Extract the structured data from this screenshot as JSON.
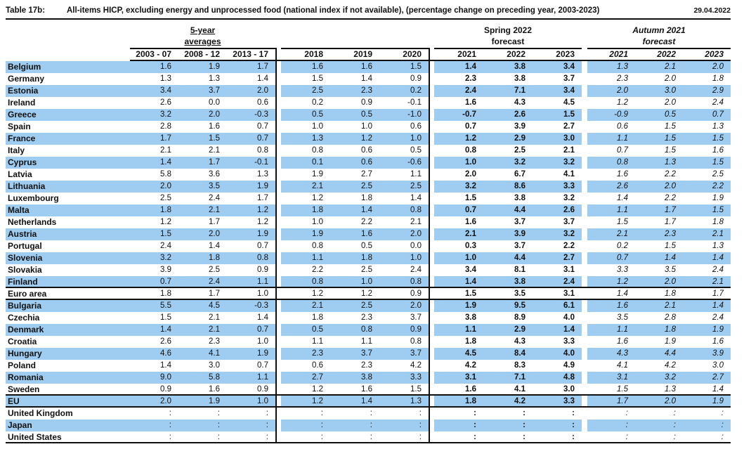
{
  "document": {
    "table_label": "Table 17b:",
    "title": "All-items HICP, excluding energy and unprocessed food (national index if not available), (percentage change on preceding year, 2003-2023)",
    "date": "29.04.2022"
  },
  "column_groups": {
    "averages": {
      "line1": "5-year",
      "line2": "averages"
    },
    "spring": {
      "line1": "Spring 2022",
      "line2": "forecast"
    },
    "autumn": {
      "line1": "Autumn 2021",
      "line2": "forecast"
    }
  },
  "colors": {
    "row_highlight": "#9fcdf2",
    "rule": "#111111"
  },
  "chart_data": {
    "type": "table",
    "column_headers": [
      "2003 - 07",
      "2008 - 12",
      "2013 - 17",
      "2018",
      "2019",
      "2020",
      "2021",
      "2022",
      "2023",
      "2021",
      "2022",
      "2023"
    ],
    "rows": [
      {
        "country": "Belgium",
        "values": [
          "1.6",
          "1.9",
          "1.7",
          "1.6",
          "1.6",
          "1.5",
          "1.4",
          "3.8",
          "3.4",
          "1.3",
          "2.1",
          "2.0"
        ]
      },
      {
        "country": "Germany",
        "values": [
          "1.3",
          "1.3",
          "1.4",
          "1.5",
          "1.4",
          "0.9",
          "2.3",
          "3.8",
          "3.7",
          "2.3",
          "2.0",
          "1.8"
        ]
      },
      {
        "country": "Estonia",
        "values": [
          "3.4",
          "3.7",
          "2.0",
          "2.5",
          "2.3",
          "0.2",
          "2.4",
          "7.1",
          "3.4",
          "2.0",
          "3.0",
          "2.9"
        ]
      },
      {
        "country": "Ireland",
        "values": [
          "2.6",
          "0.0",
          "0.6",
          "0.2",
          "0.9",
          "-0.1",
          "1.6",
          "4.3",
          "4.5",
          "1.2",
          "2.0",
          "2.4"
        ]
      },
      {
        "country": "Greece",
        "values": [
          "3.2",
          "2.0",
          "-0.3",
          "0.5",
          "0.5",
          "-1.0",
          "-0.7",
          "2.6",
          "1.5",
          "-0.9",
          "0.5",
          "0.7"
        ]
      },
      {
        "country": "Spain",
        "values": [
          "2.8",
          "1.6",
          "0.7",
          "1.0",
          "1.0",
          "0.6",
          "0.7",
          "3.9",
          "2.7",
          "0.6",
          "1.5",
          "1.3"
        ]
      },
      {
        "country": "France",
        "values": [
          "1.7",
          "1.5",
          "0.7",
          "1.3",
          "1.2",
          "1.0",
          "1.2",
          "2.9",
          "3.0",
          "1.1",
          "1.5",
          "1.5"
        ]
      },
      {
        "country": "Italy",
        "values": [
          "2.1",
          "2.1",
          "0.8",
          "0.8",
          "0.6",
          "0.5",
          "0.8",
          "2.5",
          "2.1",
          "0.7",
          "1.5",
          "1.6"
        ]
      },
      {
        "country": "Cyprus",
        "values": [
          "1.4",
          "1.7",
          "-0.1",
          "0.1",
          "0.6",
          "-0.6",
          "1.0",
          "3.2",
          "3.2",
          "0.8",
          "1.3",
          "1.5"
        ]
      },
      {
        "country": "Latvia",
        "values": [
          "5.8",
          "3.6",
          "1.3",
          "1.9",
          "2.7",
          "1.1",
          "2.0",
          "6.7",
          "4.1",
          "1.6",
          "2.2",
          "2.5"
        ]
      },
      {
        "country": "Lithuania",
        "values": [
          "2.0",
          "3.5",
          "1.9",
          "2.1",
          "2.5",
          "2.5",
          "3.2",
          "8.6",
          "3.3",
          "2.6",
          "2.0",
          "2.2"
        ]
      },
      {
        "country": "Luxembourg",
        "values": [
          "2.5",
          "2.4",
          "1.7",
          "1.2",
          "1.8",
          "1.4",
          "1.5",
          "3.8",
          "3.2",
          "1.4",
          "2.2",
          "1.9"
        ]
      },
      {
        "country": "Malta",
        "values": [
          "1.8",
          "2.1",
          "1.2",
          "1.8",
          "1.4",
          "0.8",
          "0.7",
          "4.4",
          "2.6",
          "1.1",
          "1.7",
          "1.5"
        ]
      },
      {
        "country": "Netherlands",
        "values": [
          "1.2",
          "1.7",
          "1.2",
          "1.0",
          "2.2",
          "2.1",
          "1.6",
          "3.7",
          "3.7",
          "1.5",
          "1.7",
          "1.8"
        ]
      },
      {
        "country": "Austria",
        "values": [
          "1.5",
          "2.0",
          "1.9",
          "1.9",
          "1.6",
          "2.0",
          "2.1",
          "3.9",
          "3.2",
          "2.1",
          "2.3",
          "2.1"
        ]
      },
      {
        "country": "Portugal",
        "values": [
          "2.4",
          "1.4",
          "0.7",
          "0.8",
          "0.5",
          "0.0",
          "0.3",
          "3.7",
          "2.2",
          "0.2",
          "1.5",
          "1.3"
        ]
      },
      {
        "country": "Slovenia",
        "values": [
          "3.2",
          "1.8",
          "0.8",
          "1.1",
          "1.8",
          "1.0",
          "1.0",
          "4.4",
          "2.7",
          "0.7",
          "1.4",
          "1.4"
        ]
      },
      {
        "country": "Slovakia",
        "values": [
          "3.9",
          "2.5",
          "0.9",
          "2.2",
          "2.5",
          "2.4",
          "3.4",
          "8.1",
          "3.1",
          "3.3",
          "3.5",
          "2.4"
        ]
      },
      {
        "country": "Finland",
        "values": [
          "0.7",
          "2.4",
          "1.1",
          "0.8",
          "1.0",
          "0.8",
          "1.4",
          "3.8",
          "2.4",
          "1.2",
          "2.0",
          "2.1"
        ],
        "rule_below": true
      },
      {
        "country": "Euro area",
        "values": [
          "1.8",
          "1.7",
          "1.0",
          "1.2",
          "1.2",
          "0.9",
          "1.5",
          "3.5",
          "3.1",
          "1.4",
          "1.8",
          "1.7"
        ],
        "rule_below": true
      },
      {
        "country": "Bulgaria",
        "values": [
          "5.5",
          "4.5",
          "-0.3",
          "2.1",
          "2.5",
          "2.0",
          "1.9",
          "9.5",
          "6.1",
          "1.6",
          "2.1",
          "1.4"
        ]
      },
      {
        "country": "Czechia",
        "values": [
          "1.5",
          "2.1",
          "1.4",
          "1.8",
          "2.3",
          "3.7",
          "3.8",
          "8.9",
          "4.0",
          "3.5",
          "2.8",
          "2.4"
        ]
      },
      {
        "country": "Denmark",
        "values": [
          "1.4",
          "2.1",
          "0.7",
          "0.5",
          "0.8",
          "0.9",
          "1.1",
          "2.9",
          "1.4",
          "1.1",
          "1.8",
          "1.9"
        ]
      },
      {
        "country": "Croatia",
        "values": [
          "2.6",
          "2.3",
          "1.0",
          "1.1",
          "1.1",
          "0.8",
          "1.8",
          "4.3",
          "3.3",
          "1.6",
          "1.9",
          "1.6"
        ]
      },
      {
        "country": "Hungary",
        "values": [
          "4.6",
          "4.1",
          "1.9",
          "2.3",
          "3.7",
          "3.7",
          "4.5",
          "8.4",
          "4.0",
          "4.3",
          "4.4",
          "3.9"
        ]
      },
      {
        "country": "Poland",
        "values": [
          "1.4",
          "3.0",
          "0.7",
          "0.6",
          "2.3",
          "4.2",
          "4.2",
          "8.3",
          "4.9",
          "4.1",
          "4.2",
          "3.0"
        ]
      },
      {
        "country": "Romania",
        "values": [
          "9.0",
          "5.8",
          "1.1",
          "2.7",
          "3.8",
          "3.3",
          "3.1",
          "7.1",
          "4.8",
          "3.1",
          "3.2",
          "2.7"
        ]
      },
      {
        "country": "Sweden",
        "values": [
          "0.9",
          "1.6",
          "0.9",
          "1.2",
          "1.6",
          "1.5",
          "1.6",
          "4.1",
          "3.0",
          "1.5",
          "1.3",
          "1.4"
        ],
        "rule_below": true
      },
      {
        "country": "EU",
        "values": [
          "2.0",
          "1.9",
          "1.0",
          "1.2",
          "1.4",
          "1.3",
          "1.8",
          "4.2",
          "3.3",
          "1.7",
          "2.0",
          "1.9"
        ],
        "rule_below": true
      },
      {
        "country": "United Kingdom",
        "values": [
          ":",
          ":",
          ":",
          ":",
          ":",
          ":",
          ":",
          ":",
          ":",
          ":",
          ":",
          ":"
        ]
      },
      {
        "country": "Japan",
        "values": [
          ":",
          ":",
          ":",
          ":",
          ":",
          ":",
          ":",
          ":",
          ":",
          ":",
          ":",
          ":"
        ]
      },
      {
        "country": "United States",
        "values": [
          ":",
          ":",
          ":",
          ":",
          ":",
          ":",
          ":",
          ":",
          ":",
          ":",
          ":",
          ":"
        ],
        "rule_below": true
      }
    ]
  }
}
